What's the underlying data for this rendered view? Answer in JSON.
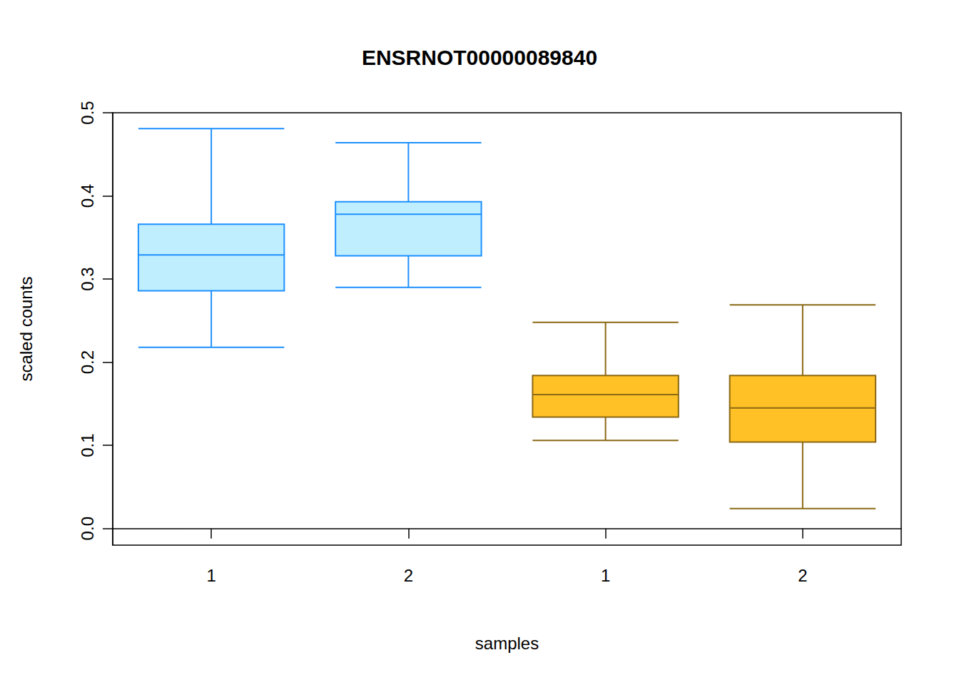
{
  "chart_data": {
    "type": "boxplot",
    "title": "ENSRNOT00000089840",
    "x_label": "samples",
    "y_label": "scaled counts",
    "categories": [
      "1",
      "2",
      "1",
      "2"
    ],
    "values": [
      [
        0.218,
        0.286,
        0.329,
        0.366,
        0.481
      ],
      [
        0.29,
        0.328,
        0.378,
        0.393,
        0.464
      ],
      [
        0.106,
        0.134,
        0.161,
        0.184,
        0.248
      ],
      [
        0.024,
        0.104,
        0.145,
        0.184,
        0.269
      ]
    ],
    "colors": [
      "#BFEFFF",
      "#BFEFFF",
      "#FFC125",
      "#FFC125"
    ],
    "ylim": [
      -0.02,
      0.5
    ],
    "yticks": [
      0,
      0.1,
      0.2,
      0.3,
      0.4,
      0.5
    ],
    "grid": false
  }
}
